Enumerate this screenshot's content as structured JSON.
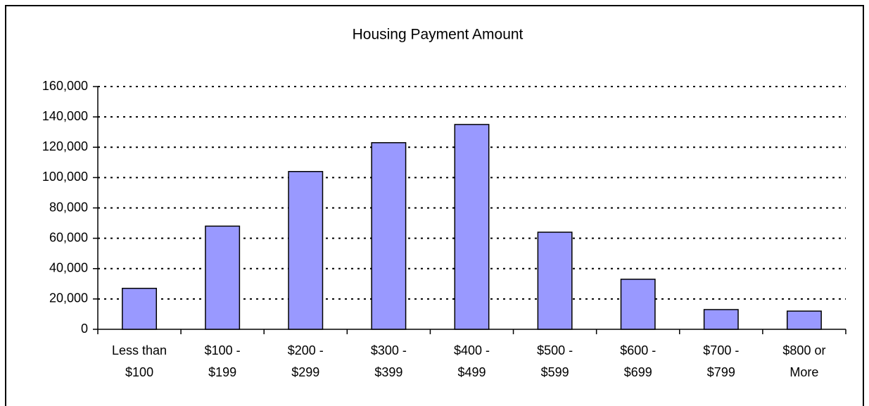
{
  "chart_data": {
    "type": "bar",
    "title": "Housing Payment Amount",
    "categories": [
      [
        "Less than",
        "$100"
      ],
      [
        "$100 -",
        "$199"
      ],
      [
        "$200 -",
        "$299"
      ],
      [
        "$300 -",
        "$399"
      ],
      [
        "$400 -",
        "$499"
      ],
      [
        "$500 -",
        "$599"
      ],
      [
        "$600 -",
        "$699"
      ],
      [
        "$700 -",
        "$799"
      ],
      [
        "$800 or",
        "More"
      ]
    ],
    "values": [
      27000,
      68000,
      104000,
      123000,
      135000,
      64000,
      33000,
      13000,
      12000
    ],
    "color": "#9999ff",
    "ylim": [
      0,
      160000
    ],
    "yticks": [
      0,
      {
        "value": 20000,
        "label": "20,000"
      },
      {
        "value": 40000,
        "label": "40,000"
      },
      {
        "value": 60000,
        "label": "60,000"
      },
      {
        "value": 80000,
        "label": "80,000"
      },
      {
        "value": 100000,
        "label": "100,000"
      },
      {
        "value": 120000,
        "label": "120,000"
      },
      {
        "value": 140000,
        "label": "140,000"
      },
      {
        "value": 160000,
        "label": "160,000"
      }
    ],
    "grid": true
  }
}
